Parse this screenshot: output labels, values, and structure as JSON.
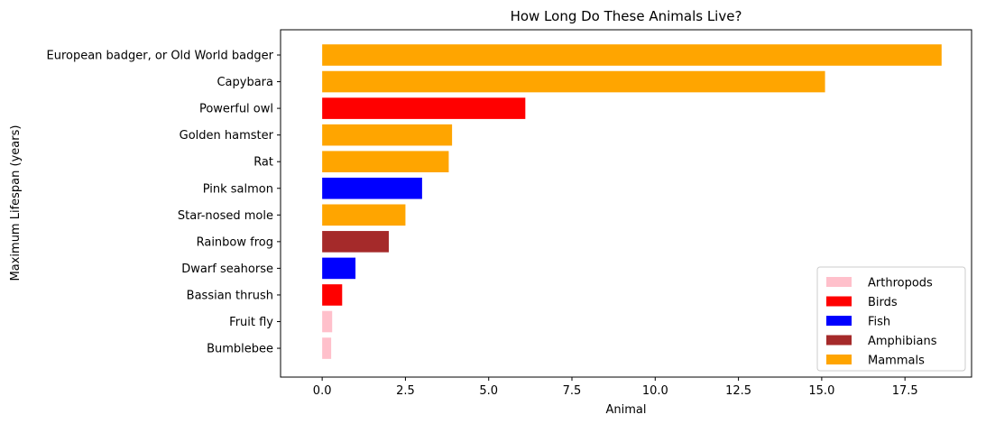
{
  "chart_data": {
    "type": "bar",
    "orientation": "horizontal",
    "title": "How Long Do These Animals Live?",
    "xlabel": "Animal",
    "ylabel": "Maximum Lifespan (years)",
    "xlim": [
      -1.25,
      19.5
    ],
    "xticks": [
      0.0,
      2.5,
      5.0,
      7.5,
      10.0,
      12.5,
      15.0,
      17.5
    ],
    "xtick_labels": [
      "0.0",
      "2.5",
      "5.0",
      "7.5",
      "10.0",
      "12.5",
      "15.0",
      "17.5"
    ],
    "grid": false,
    "legend_position": "lower-right",
    "categories": [
      "European badger, or Old World badger",
      "Capybara",
      "Powerful owl",
      "Golden hamster",
      "Rat",
      "Pink salmon",
      "Star-nosed mole",
      "Rainbow frog",
      "Dwarf seahorse",
      "Bassian thrush",
      "Fruit fly",
      "Bumblebee"
    ],
    "values": [
      18.6,
      15.1,
      6.1,
      3.9,
      3.8,
      3.0,
      2.5,
      2.0,
      1.0,
      0.6,
      0.3,
      0.27
    ],
    "groups": [
      "Mammals",
      "Mammals",
      "Birds",
      "Mammals",
      "Mammals",
      "Fish",
      "Mammals",
      "Amphibians",
      "Fish",
      "Birds",
      "Arthropods",
      "Arthropods"
    ],
    "legend": [
      {
        "name": "Arthropods",
        "color": "#ffc0cb"
      },
      {
        "name": "Birds",
        "color": "#ff0000"
      },
      {
        "name": "Fish",
        "color": "#0000ff"
      },
      {
        "name": "Amphibians",
        "color": "#a52a2a"
      },
      {
        "name": "Mammals",
        "color": "#ffa500"
      }
    ]
  }
}
